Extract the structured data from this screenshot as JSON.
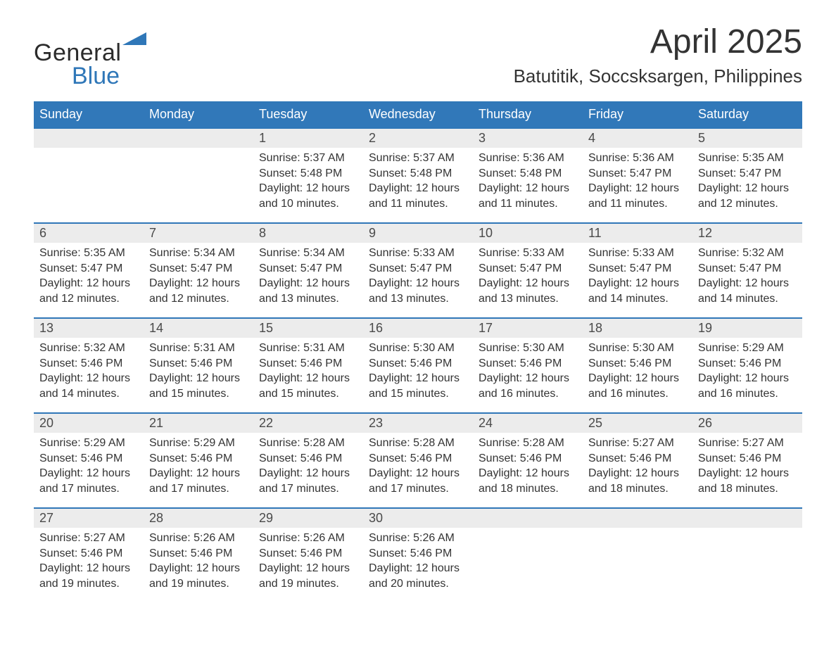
{
  "brand": {
    "word1": "General",
    "word2": "Blue",
    "triangle_color": "#2f77b8"
  },
  "title": "April 2025",
  "subtitle": "Batutitik, Soccsksargen, Philippines",
  "colors": {
    "header_bg": "#3178b9",
    "header_text": "#ffffff",
    "date_row_bg": "#ececec",
    "rule": "#2f77b8",
    "body_text": "#333333"
  },
  "typography": {
    "title_fontsize": 48,
    "subtitle_fontsize": 26,
    "header_fontsize": 18,
    "cell_fontsize": 16
  },
  "calendar": {
    "type": "table",
    "day_names": [
      "Sunday",
      "Monday",
      "Tuesday",
      "Wednesday",
      "Thursday",
      "Friday",
      "Saturday"
    ],
    "weeks": [
      {
        "dates": [
          "",
          "",
          "1",
          "2",
          "3",
          "4",
          "5"
        ],
        "cells": [
          "",
          "",
          "Sunrise: 5:37 AM\nSunset: 5:48 PM\nDaylight: 12 hours and 10 minutes.",
          "Sunrise: 5:37 AM\nSunset: 5:48 PM\nDaylight: 12 hours and 11 minutes.",
          "Sunrise: 5:36 AM\nSunset: 5:48 PM\nDaylight: 12 hours and 11 minutes.",
          "Sunrise: 5:36 AM\nSunset: 5:47 PM\nDaylight: 12 hours and 11 minutes.",
          "Sunrise: 5:35 AM\nSunset: 5:47 PM\nDaylight: 12 hours and 12 minutes."
        ]
      },
      {
        "dates": [
          "6",
          "7",
          "8",
          "9",
          "10",
          "11",
          "12"
        ],
        "cells": [
          "Sunrise: 5:35 AM\nSunset: 5:47 PM\nDaylight: 12 hours and 12 minutes.",
          "Sunrise: 5:34 AM\nSunset: 5:47 PM\nDaylight: 12 hours and 12 minutes.",
          "Sunrise: 5:34 AM\nSunset: 5:47 PM\nDaylight: 12 hours and 13 minutes.",
          "Sunrise: 5:33 AM\nSunset: 5:47 PM\nDaylight: 12 hours and 13 minutes.",
          "Sunrise: 5:33 AM\nSunset: 5:47 PM\nDaylight: 12 hours and 13 minutes.",
          "Sunrise: 5:33 AM\nSunset: 5:47 PM\nDaylight: 12 hours and 14 minutes.",
          "Sunrise: 5:32 AM\nSunset: 5:47 PM\nDaylight: 12 hours and 14 minutes."
        ]
      },
      {
        "dates": [
          "13",
          "14",
          "15",
          "16",
          "17",
          "18",
          "19"
        ],
        "cells": [
          "Sunrise: 5:32 AM\nSunset: 5:46 PM\nDaylight: 12 hours and 14 minutes.",
          "Sunrise: 5:31 AM\nSunset: 5:46 PM\nDaylight: 12 hours and 15 minutes.",
          "Sunrise: 5:31 AM\nSunset: 5:46 PM\nDaylight: 12 hours and 15 minutes.",
          "Sunrise: 5:30 AM\nSunset: 5:46 PM\nDaylight: 12 hours and 15 minutes.",
          "Sunrise: 5:30 AM\nSunset: 5:46 PM\nDaylight: 12 hours and 16 minutes.",
          "Sunrise: 5:30 AM\nSunset: 5:46 PM\nDaylight: 12 hours and 16 minutes.",
          "Sunrise: 5:29 AM\nSunset: 5:46 PM\nDaylight: 12 hours and 16 minutes."
        ]
      },
      {
        "dates": [
          "20",
          "21",
          "22",
          "23",
          "24",
          "25",
          "26"
        ],
        "cells": [
          "Sunrise: 5:29 AM\nSunset: 5:46 PM\nDaylight: 12 hours and 17 minutes.",
          "Sunrise: 5:29 AM\nSunset: 5:46 PM\nDaylight: 12 hours and 17 minutes.",
          "Sunrise: 5:28 AM\nSunset: 5:46 PM\nDaylight: 12 hours and 17 minutes.",
          "Sunrise: 5:28 AM\nSunset: 5:46 PM\nDaylight: 12 hours and 17 minutes.",
          "Sunrise: 5:28 AM\nSunset: 5:46 PM\nDaylight: 12 hours and 18 minutes.",
          "Sunrise: 5:27 AM\nSunset: 5:46 PM\nDaylight: 12 hours and 18 minutes.",
          "Sunrise: 5:27 AM\nSunset: 5:46 PM\nDaylight: 12 hours and 18 minutes."
        ]
      },
      {
        "dates": [
          "27",
          "28",
          "29",
          "30",
          "",
          "",
          ""
        ],
        "cells": [
          "Sunrise: 5:27 AM\nSunset: 5:46 PM\nDaylight: 12 hours and 19 minutes.",
          "Sunrise: 5:26 AM\nSunset: 5:46 PM\nDaylight: 12 hours and 19 minutes.",
          "Sunrise: 5:26 AM\nSunset: 5:46 PM\nDaylight: 12 hours and 19 minutes.",
          "Sunrise: 5:26 AM\nSunset: 5:46 PM\nDaylight: 12 hours and 20 minutes.",
          "",
          "",
          ""
        ]
      }
    ]
  }
}
